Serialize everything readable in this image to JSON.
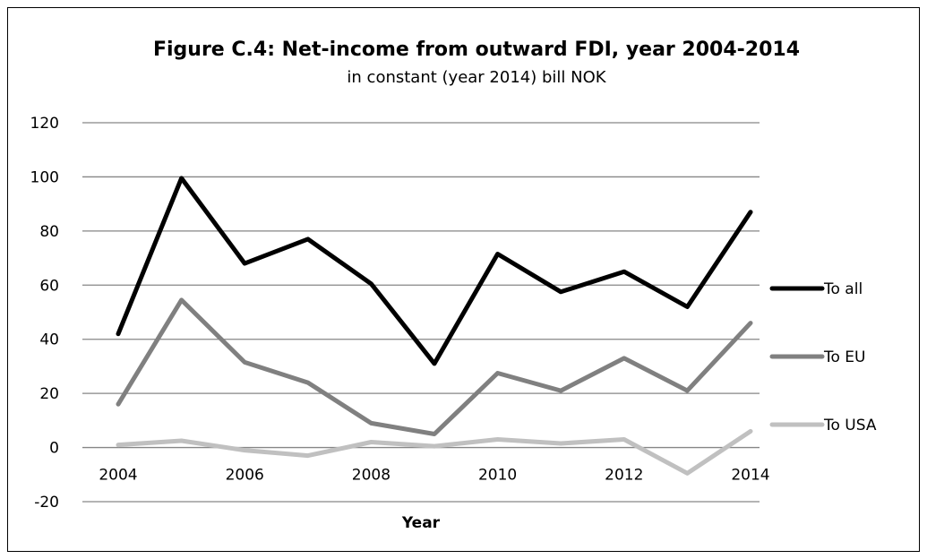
{
  "chart_data": {
    "type": "line",
    "title": "Figure C.4: Net-income from outward FDI, year 2004-2014",
    "subtitle": "in constant (year 2014) bill NOK",
    "xlabel": "Year",
    "ylabel": "",
    "x": [
      2004,
      2005,
      2006,
      2007,
      2008,
      2009,
      2010,
      2011,
      2012,
      2013,
      2014
    ],
    "x_tick_labels": [
      "2004",
      "2006",
      "2008",
      "2010",
      "2012",
      "2014"
    ],
    "x_tick_values": [
      2004,
      2006,
      2008,
      2010,
      2012,
      2014
    ],
    "y_tick_labels": [
      "-20",
      "0",
      "20",
      "40",
      "60",
      "80",
      "100",
      "120"
    ],
    "y_tick_values": [
      -20,
      0,
      20,
      40,
      60,
      80,
      100,
      120
    ],
    "ylim": [
      -20,
      120
    ],
    "grid": true,
    "legend_position": "right",
    "series": [
      {
        "name": "To all",
        "color": "#000000",
        "values": [
          42,
          99.5,
          68,
          77,
          60.5,
          31,
          71.5,
          57.5,
          65,
          52,
          87
        ]
      },
      {
        "name": "To EU",
        "color": "#808080",
        "values": [
          16,
          54.5,
          31.5,
          24,
          9,
          5,
          27.5,
          21,
          33,
          21,
          46
        ]
      },
      {
        "name": "To USA",
        "color": "#c0c0c0",
        "values": [
          1,
          2.5,
          -1,
          -3,
          2,
          0.5,
          3,
          1.5,
          3,
          -9.5,
          6
        ]
      }
    ]
  }
}
